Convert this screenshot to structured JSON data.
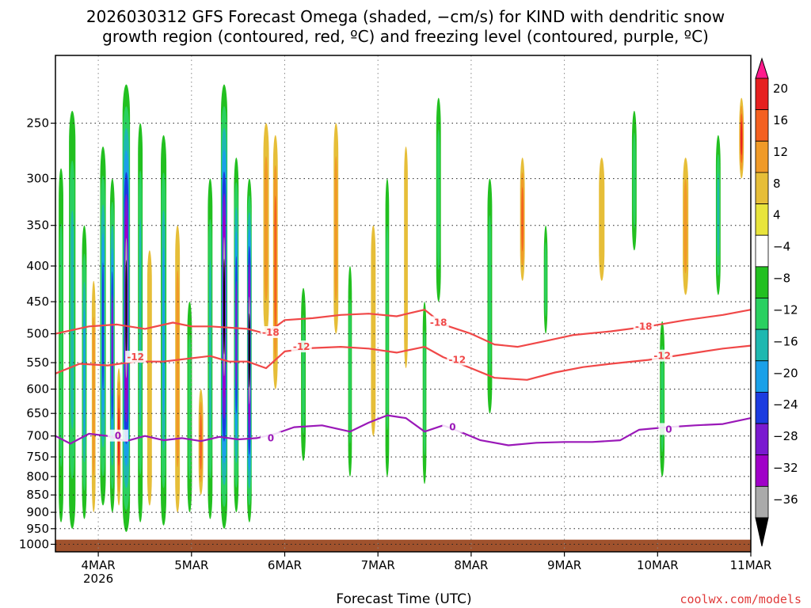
{
  "title": {
    "line1": "2026030312 GFS Forecast Omega (shaded, −cm/s) for KIND with dendritic snow",
    "line2": "growth region (contoured, red, ºC) and freezing level (contoured, purple, ºC)"
  },
  "credit": "coolwx.com/models",
  "chart_data": {
    "type": "heatmap",
    "title": "2026030312 GFS Forecast Omega (shaded, −cm/s) for KIND with dendritic snow growth region (contoured, red, ºC) and freezing level (contoured, purple, ºC)",
    "xlabel": "Forecast Time (UTC)",
    "ylabel": "",
    "x_range_days": [
      3.54,
      11.0
    ],
    "y_range_hpa": [
      1025,
      200
    ],
    "y_scale": "log (pressure)",
    "grid": true,
    "x_ticks": [
      {
        "label": "4MAR",
        "day": 4,
        "sub": "2026"
      },
      {
        "label": "5MAR",
        "day": 5,
        "sub": ""
      },
      {
        "label": "6MAR",
        "day": 6,
        "sub": ""
      },
      {
        "label": "7MAR",
        "day": 7,
        "sub": ""
      },
      {
        "label": "8MAR",
        "day": 8,
        "sub": ""
      },
      {
        "label": "9MAR",
        "day": 9,
        "sub": ""
      },
      {
        "label": "10MAR",
        "day": 10,
        "sub": ""
      },
      {
        "label": "11MAR",
        "day": 11,
        "sub": ""
      }
    ],
    "y_ticks": [
      250,
      300,
      350,
      400,
      450,
      500,
      550,
      600,
      650,
      700,
      750,
      800,
      850,
      900,
      950,
      1000
    ],
    "colorbar": {
      "placement": "right",
      "labels": [
        "20",
        "16",
        "12",
        "8",
        "4",
        "−4",
        "−8",
        "−12",
        "−16",
        "−20",
        "−24",
        "−28",
        "−32",
        "−36"
      ],
      "colors": [
        "#ff1a8c",
        "#e62020",
        "#f46020",
        "#f09a28",
        "#e6be38",
        "#e8e43c",
        "#ffffff",
        "#22c020",
        "#2ad060",
        "#1eb8b0",
        "#1aa0e8",
        "#1c3ce0",
        "#7a1ad0",
        "#a000c8",
        "#aaaaaa",
        "#000000"
      ]
    },
    "ground_level_hpa": 985,
    "ground_color": "#a0522d",
    "omega_bands": [
      {
        "day": 3.6,
        "width": 0.05,
        "top": 290,
        "bottom": 930,
        "value": -10
      },
      {
        "day": 3.72,
        "width": 0.07,
        "top": 240,
        "bottom": 950,
        "value": -14
      },
      {
        "day": 3.85,
        "width": 0.05,
        "top": 350,
        "bottom": 920,
        "value": -18
      },
      {
        "day": 3.95,
        "width": 0.04,
        "top": 420,
        "bottom": 900,
        "value": 8
      },
      {
        "day": 4.05,
        "width": 0.06,
        "top": 270,
        "bottom": 880,
        "value": -22
      },
      {
        "day": 4.15,
        "width": 0.05,
        "top": 300,
        "bottom": 900,
        "value": -26
      },
      {
        "day": 4.22,
        "width": 0.04,
        "top": 560,
        "bottom": 880,
        "value": 18
      },
      {
        "day": 4.3,
        "width": 0.08,
        "top": 220,
        "bottom": 960,
        "value": -38
      },
      {
        "day": 4.45,
        "width": 0.05,
        "top": 250,
        "bottom": 930,
        "value": -12
      },
      {
        "day": 4.55,
        "width": 0.05,
        "top": 380,
        "bottom": 880,
        "value": 6
      },
      {
        "day": 4.7,
        "width": 0.06,
        "top": 260,
        "bottom": 940,
        "value": -16
      },
      {
        "day": 4.85,
        "width": 0.05,
        "top": 350,
        "bottom": 900,
        "value": 8
      },
      {
        "day": 4.98,
        "width": 0.05,
        "top": 450,
        "bottom": 900,
        "value": -10
      },
      {
        "day": 5.1,
        "width": 0.05,
        "top": 600,
        "bottom": 850,
        "value": 14
      },
      {
        "day": 5.2,
        "width": 0.05,
        "top": 300,
        "bottom": 920,
        "value": -14
      },
      {
        "day": 5.35,
        "width": 0.07,
        "top": 220,
        "bottom": 950,
        "value": -38
      },
      {
        "day": 5.48,
        "width": 0.05,
        "top": 280,
        "bottom": 900,
        "value": -24
      },
      {
        "day": 5.62,
        "width": 0.05,
        "top": 300,
        "bottom": 930,
        "value": -36
      },
      {
        "day": 5.8,
        "width": 0.06,
        "top": 250,
        "bottom": 500,
        "value": 8
      },
      {
        "day": 5.9,
        "width": 0.05,
        "top": 260,
        "bottom": 600,
        "value": 12
      },
      {
        "day": 6.2,
        "width": 0.05,
        "top": 430,
        "bottom": 760,
        "value": -8
      },
      {
        "day": 6.55,
        "width": 0.05,
        "top": 250,
        "bottom": 500,
        "value": 10
      },
      {
        "day": 6.7,
        "width": 0.04,
        "top": 400,
        "bottom": 800,
        "value": -8
      },
      {
        "day": 6.95,
        "width": 0.05,
        "top": 350,
        "bottom": 700,
        "value": 6
      },
      {
        "day": 7.1,
        "width": 0.04,
        "top": 300,
        "bottom": 800,
        "value": -8
      },
      {
        "day": 7.3,
        "width": 0.04,
        "top": 270,
        "bottom": 560,
        "value": 6
      },
      {
        "day": 7.5,
        "width": 0.04,
        "top": 450,
        "bottom": 820,
        "value": -8
      },
      {
        "day": 7.65,
        "width": 0.05,
        "top": 230,
        "bottom": 450,
        "value": -10
      },
      {
        "day": 8.2,
        "width": 0.05,
        "top": 300,
        "bottom": 650,
        "value": -8
      },
      {
        "day": 8.55,
        "width": 0.05,
        "top": 280,
        "bottom": 420,
        "value": 14
      },
      {
        "day": 8.8,
        "width": 0.04,
        "top": 350,
        "bottom": 500,
        "value": -10
      },
      {
        "day": 9.4,
        "width": 0.06,
        "top": 280,
        "bottom": 420,
        "value": 6
      },
      {
        "day": 9.75,
        "width": 0.05,
        "top": 240,
        "bottom": 380,
        "value": -8
      },
      {
        "day": 10.05,
        "width": 0.05,
        "top": 480,
        "bottom": 800,
        "value": -10
      },
      {
        "day": 10.3,
        "width": 0.06,
        "top": 280,
        "bottom": 440,
        "value": 8
      },
      {
        "day": 10.65,
        "width": 0.05,
        "top": 260,
        "bottom": 440,
        "value": -12
      },
      {
        "day": 10.9,
        "width": 0.05,
        "top": 230,
        "bottom": 300,
        "value": 16
      }
    ],
    "contours": [
      {
        "label": "-18",
        "color": "#f04848",
        "points": [
          [
            3.54,
            500
          ],
          [
            3.9,
            488
          ],
          [
            4.2,
            485
          ],
          [
            4.5,
            492
          ],
          [
            4.8,
            482
          ],
          [
            5.0,
            488
          ],
          [
            5.2,
            488
          ],
          [
            5.4,
            490
          ],
          [
            5.6,
            492
          ],
          [
            5.8,
            500
          ],
          [
            6.0,
            478
          ],
          [
            6.3,
            475
          ],
          [
            6.6,
            470
          ],
          [
            6.9,
            468
          ],
          [
            7.2,
            472
          ],
          [
            7.5,
            462
          ],
          [
            7.7,
            485
          ],
          [
            8.0,
            500
          ],
          [
            8.25,
            518
          ],
          [
            8.5,
            522
          ],
          [
            8.8,
            512
          ],
          [
            9.1,
            502
          ],
          [
            9.5,
            496
          ],
          [
            9.9,
            488
          ],
          [
            10.3,
            478
          ],
          [
            10.7,
            470
          ],
          [
            11.0,
            462
          ]
        ],
        "labels_at": [
          [
            5.85,
            498
          ],
          [
            7.65,
            482
          ],
          [
            9.85,
            488
          ]
        ]
      },
      {
        "label": "-12",
        "color": "#f04848",
        "points": [
          [
            3.54,
            570
          ],
          [
            3.8,
            552
          ],
          [
            4.1,
            555
          ],
          [
            4.4,
            548
          ],
          [
            4.7,
            548
          ],
          [
            5.0,
            542
          ],
          [
            5.2,
            538
          ],
          [
            5.4,
            548
          ],
          [
            5.6,
            548
          ],
          [
            5.8,
            560
          ],
          [
            6.0,
            530
          ],
          [
            6.3,
            524
          ],
          [
            6.6,
            522
          ],
          [
            6.9,
            525
          ],
          [
            7.2,
            532
          ],
          [
            7.5,
            522
          ],
          [
            7.7,
            540
          ],
          [
            8.0,
            560
          ],
          [
            8.25,
            578
          ],
          [
            8.6,
            582
          ],
          [
            8.9,
            568
          ],
          [
            9.2,
            558
          ],
          [
            9.5,
            552
          ],
          [
            9.9,
            545
          ],
          [
            10.3,
            535
          ],
          [
            10.7,
            525
          ],
          [
            11.0,
            520
          ]
        ],
        "labels_at": [
          [
            4.4,
            540
          ],
          [
            6.18,
            522
          ],
          [
            7.85,
            545
          ],
          [
            10.05,
            538
          ]
        ]
      },
      {
        "label": "0",
        "color": "#9a18b8",
        "points": [
          [
            3.54,
            700
          ],
          [
            3.7,
            718
          ],
          [
            3.9,
            695
          ],
          [
            4.1,
            700
          ],
          [
            4.3,
            712
          ],
          [
            4.5,
            700
          ],
          [
            4.7,
            710
          ],
          [
            4.9,
            705
          ],
          [
            5.1,
            712
          ],
          [
            5.3,
            702
          ],
          [
            5.5,
            708
          ],
          [
            5.7,
            705
          ],
          [
            5.9,
            695
          ],
          [
            6.1,
            680
          ],
          [
            6.4,
            676
          ],
          [
            6.7,
            690
          ],
          [
            6.9,
            670
          ],
          [
            7.1,
            654
          ],
          [
            7.3,
            660
          ],
          [
            7.5,
            690
          ],
          [
            7.7,
            676
          ],
          [
            7.9,
            692
          ],
          [
            8.1,
            710
          ],
          [
            8.4,
            722
          ],
          [
            8.7,
            716
          ],
          [
            9.0,
            714
          ],
          [
            9.3,
            714
          ],
          [
            9.6,
            710
          ],
          [
            9.8,
            686
          ],
          [
            10.1,
            680
          ],
          [
            10.4,
            676
          ],
          [
            10.7,
            673
          ],
          [
            11.0,
            660
          ]
        ],
        "labels_at": [
          [
            4.21,
            700
          ],
          [
            5.85,
            705
          ],
          [
            7.8,
            680
          ],
          [
            10.12,
            685
          ]
        ]
      }
    ]
  }
}
